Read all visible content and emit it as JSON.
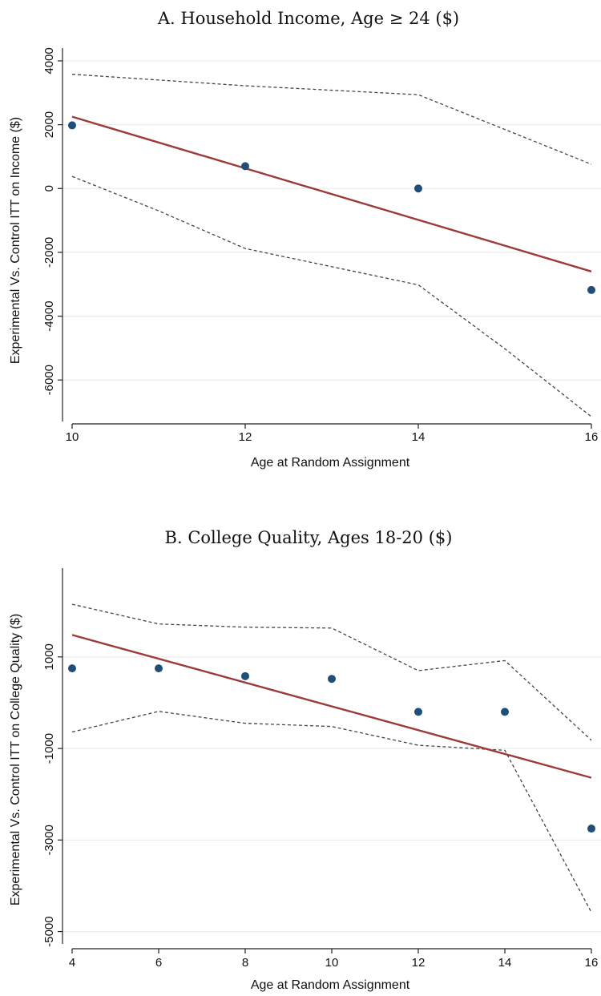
{
  "chart_data": [
    {
      "type": "scatter",
      "title": "A. Household Income, Age ≥ 24 ($)",
      "xlabel": "Age at Random Assignment",
      "ylabel": "Experimental Vs. Control ITT on Income ($)",
      "xlim": [
        10,
        16
      ],
      "ylim": [
        -7200,
        4200
      ],
      "xticks": [
        10,
        12,
        14,
        16
      ],
      "yticks": [
        -6000,
        -4000,
        -2000,
        0,
        2000,
        4000
      ],
      "grid": true,
      "colors": {
        "points": "#1f4e79",
        "fit": "#9b3b3b",
        "ci": "#444444",
        "grid": "#e8e8e8"
      },
      "points": {
        "x": [
          10,
          12,
          14,
          16
        ],
        "y": [
          1980,
          700,
          0,
          -3180
        ]
      },
      "fit_line": {
        "x": [
          10,
          16
        ],
        "y": [
          2250,
          -2600
        ]
      },
      "ci_upper": {
        "x": [
          10,
          12,
          14,
          15,
          16
        ],
        "y": [
          3580,
          3220,
          2940,
          1850,
          760
        ]
      },
      "ci_lower": {
        "x": [
          10,
          11,
          12,
          13,
          14,
          15,
          16
        ],
        "y": [
          380,
          -700,
          -1880,
          -2450,
          -3020,
          -5020,
          -7150
        ]
      }
    },
    {
      "type": "scatter",
      "title": "B. College Quality, Ages 18-20 ($)",
      "xlabel": "Age at Random Assignment",
      "ylabel": "Experimental Vs. Control ITT on College Quality ($)",
      "xlim": [
        4,
        16
      ],
      "ylim": [
        -5200,
        2800
      ],
      "xticks": [
        4,
        6,
        8,
        10,
        12,
        14,
        16
      ],
      "yticks": [
        -5000,
        -3000,
        -1000,
        1000
      ],
      "grid": true,
      "colors": {
        "points": "#1f4e79",
        "fit": "#9b3b3b",
        "ci": "#444444",
        "grid": "#e8e8e8"
      },
      "points": {
        "x": [
          4,
          6,
          8,
          10,
          12,
          14,
          16
        ],
        "y": [
          750,
          750,
          580,
          520,
          -200,
          -200,
          -2750
        ]
      },
      "fit_line": {
        "x": [
          4,
          16
        ],
        "y": [
          1480,
          -1640
        ]
      },
      "ci_upper": {
        "x": [
          4,
          6,
          8,
          10,
          12,
          14,
          16
        ],
        "y": [
          2150,
          1720,
          1650,
          1630,
          700,
          920,
          -820
        ]
      },
      "ci_lower": {
        "x": [
          4,
          6,
          8,
          10,
          12,
          14,
          16
        ],
        "y": [
          -640,
          -190,
          -450,
          -520,
          -930,
          -1040,
          -4580
        ]
      }
    }
  ]
}
